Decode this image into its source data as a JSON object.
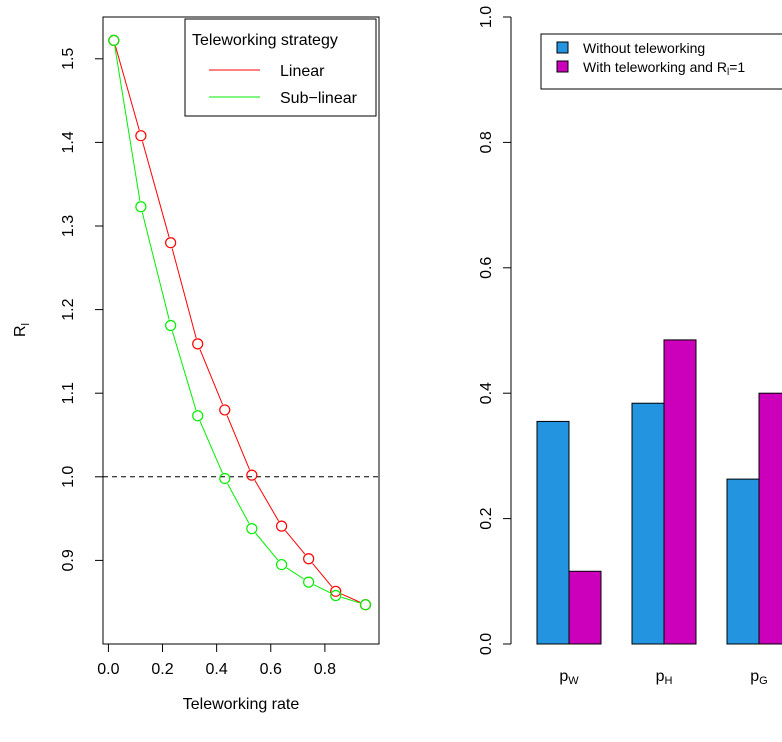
{
  "chart_data": [
    {
      "type": "line",
      "xlabel": "Teleworking rate",
      "ylabel": "R",
      "ylabel_sub": "l",
      "xlim": [
        -0.02,
        1.0
      ],
      "ylim": [
        0.8,
        1.55
      ],
      "x_ticks": [
        0.0,
        0.2,
        0.4,
        0.6,
        0.8
      ],
      "x_tick_labels": [
        "0.0",
        "0.2",
        "0.4",
        "0.6",
        "0.8"
      ],
      "y_ticks": [
        0.9,
        1.0,
        1.1,
        1.2,
        1.3,
        1.4,
        1.5
      ],
      "y_tick_labels": [
        "0.9",
        "1.0",
        "1.1",
        "1.2",
        "1.3",
        "1.4",
        "1.5"
      ],
      "reference_line": {
        "y": 1.0,
        "style": "dashed",
        "color": "#000000"
      },
      "legend": {
        "title": "Teleworking strategy",
        "position": "top-right",
        "entries": [
          "Linear",
          "Sub−linear"
        ]
      },
      "series": [
        {
          "name": "Linear",
          "color": "#ff0000",
          "x": [
            0.02,
            0.12,
            0.23,
            0.33,
            0.43,
            0.53,
            0.64,
            0.74,
            0.84,
            0.95
          ],
          "y": [
            1.522,
            1.408,
            1.28,
            1.159,
            1.08,
            1.002,
            0.941,
            0.902,
            0.863,
            0.847
          ]
        },
        {
          "name": "Sub−linear",
          "color": "#00ee00",
          "x": [
            0.02,
            0.12,
            0.23,
            0.33,
            0.43,
            0.53,
            0.64,
            0.74,
            0.84,
            0.95
          ],
          "y": [
            1.522,
            1.323,
            1.181,
            1.073,
            0.998,
            0.938,
            0.895,
            0.874,
            0.858,
            0.847
          ]
        }
      ]
    },
    {
      "type": "bar",
      "categories": [
        {
          "base": "p",
          "sub": "W"
        },
        {
          "base": "p",
          "sub": "H"
        },
        {
          "base": "p",
          "sub": "G"
        }
      ],
      "ylim": [
        0.0,
        1.0
      ],
      "y_ticks": [
        0.0,
        0.2,
        0.4,
        0.6,
        0.8,
        1.0
      ],
      "y_tick_labels": [
        "0.0",
        "0.2",
        "0.4",
        "0.6",
        "0.8",
        "1.0"
      ],
      "legend": {
        "position": "top-right",
        "entries": [
          {
            "text": "Without teleworking",
            "color": "#2394e0"
          },
          {
            "text": "With teleworking and R",
            "sub": "l",
            "suffix": "=1",
            "color": "#cc00bb"
          }
        ]
      },
      "series": [
        {
          "name": "Without teleworking",
          "color": "#2394e0",
          "values": [
            0.355,
            0.384,
            0.263
          ]
        },
        {
          "name": "With teleworking and Rl=1",
          "color": "#cc00bb",
          "values": [
            0.116,
            0.485,
            0.4
          ]
        }
      ]
    }
  ]
}
